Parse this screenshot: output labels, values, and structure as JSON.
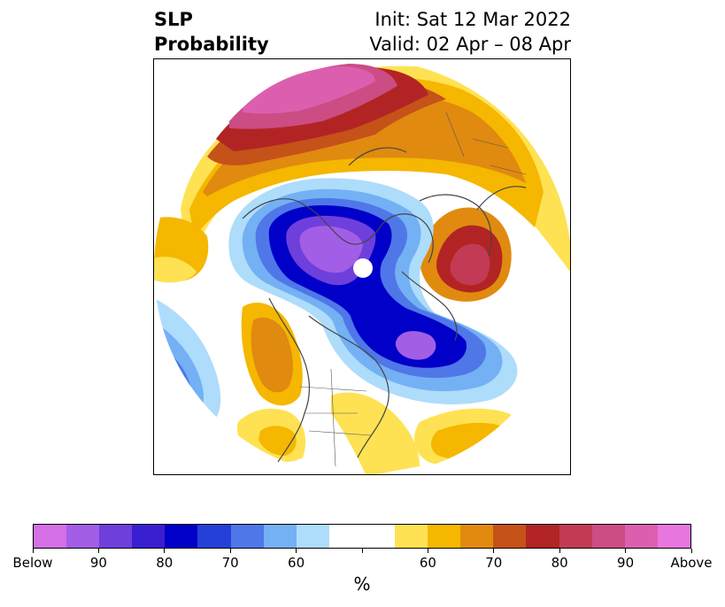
{
  "header": {
    "title_line1": "SLP",
    "title_line2": "Probability",
    "init": "Init: Sat 12 Mar 2022",
    "valid": "Valid: 02 Apr – 08 Apr"
  },
  "colorbar": {
    "unit_label": "%",
    "colors": [
      "#d46fe6",
      "#a25ee6",
      "#6f3fdc",
      "#3a1fd0",
      "#0000c8",
      "#2540d8",
      "#4f77e8",
      "#74b0f4",
      "#aedcfb",
      "#ffffff",
      "#ffffff",
      "#fee253",
      "#f5b700",
      "#e08a10",
      "#c55218",
      "#b22424",
      "#c23a55",
      "#cc4c84",
      "#dc5faf",
      "#e777de"
    ],
    "tick_labels": [
      "Below",
      "90",
      "80",
      "70",
      "60",
      "",
      "60",
      "70",
      "80",
      "90",
      "Above"
    ]
  },
  "map": {
    "projection": "north-polar-stereographic",
    "field": "sea-level-pressure-probability"
  }
}
